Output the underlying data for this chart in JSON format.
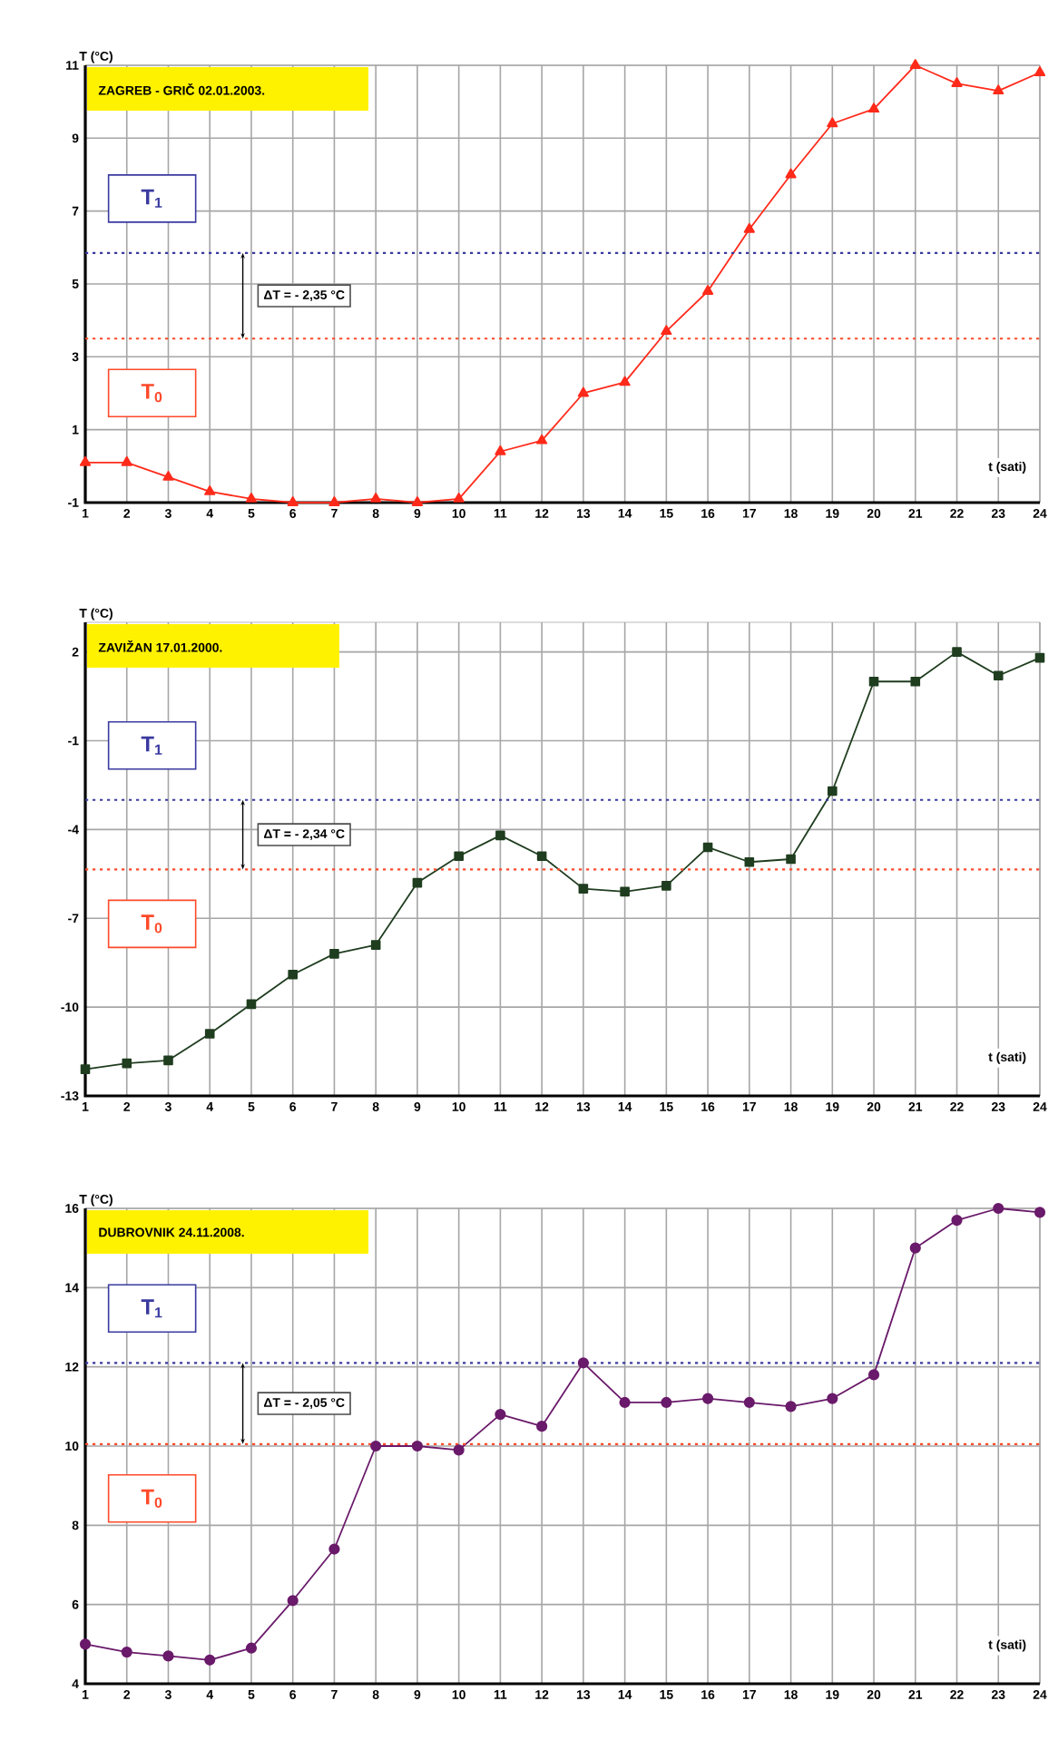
{
  "chart_data": [
    {
      "type": "line",
      "title": "ZAGREB - GRIČ 02.01.2003.",
      "ylabel": "T (°C)",
      "xlabel": "t (sati)",
      "grid": true,
      "marker": "triangle",
      "x": [
        1,
        2,
        3,
        4,
        5,
        6,
        7,
        8,
        9,
        10,
        11,
        12,
        13,
        14,
        15,
        16,
        17,
        18,
        19,
        20,
        21,
        22,
        23,
        24
      ],
      "xlim": [
        1,
        24
      ],
      "xticks": [
        1,
        2,
        3,
        4,
        5,
        6,
        7,
        8,
        9,
        10,
        11,
        12,
        13,
        14,
        15,
        16,
        17,
        18,
        19,
        20,
        21,
        22,
        23,
        24
      ],
      "ylim": [
        -1,
        11
      ],
      "yticks": [
        -1,
        1,
        3,
        5,
        7,
        9,
        11
      ],
      "series": [
        {
          "color": "#ff2a1a",
          "values": [
            0.1,
            0.1,
            -0.3,
            -0.7,
            -0.9,
            -1,
            -1,
            -0.9,
            -1,
            -0.9,
            0.4,
            0.7,
            2.0,
            2.3,
            3.7,
            4.8,
            6.5,
            8.0,
            9.4,
            9.8,
            11,
            10.5,
            10.3,
            10.8
          ]
        }
      ],
      "ref_lines": [
        {
          "axis": "y",
          "value": 5.85,
          "label": "T$_{1}$",
          "color": "#3a3aa0",
          "line_style": "dotted"
        },
        {
          "axis": "y",
          "value": 3.5,
          "label": "T$_{0}$",
          "color": "#ff4a2a",
          "line_style": "dotted"
        }
      ],
      "annotations": [
        "ΔT = - 2,35 °C"
      ]
    },
    {
      "type": "line",
      "title": "ZAVIŽAN 17.01.2000.",
      "ylabel": "T (°C)",
      "xlabel": "t (sati)",
      "grid": true,
      "marker": "square",
      "x": [
        1,
        2,
        3,
        4,
        5,
        6,
        7,
        8,
        9,
        10,
        11,
        12,
        13,
        14,
        15,
        16,
        17,
        18,
        19,
        20,
        21,
        22,
        23,
        24
      ],
      "xlim": [
        1,
        24
      ],
      "xticks": [
        1,
        2,
        3,
        4,
        5,
        6,
        7,
        8,
        9,
        10,
        11,
        12,
        13,
        14,
        15,
        16,
        17,
        18,
        19,
        20,
        21,
        22,
        23,
        24
      ],
      "ylim": [
        -13,
        3
      ],
      "yticks": [
        -13,
        -10,
        -7,
        -4,
        -1,
        2
      ],
      "series": [
        {
          "color": "#1f3d1f",
          "values": [
            -12.1,
            -11.9,
            -11.8,
            -10.9,
            -9.9,
            -8.9,
            -8.2,
            -7.9,
            -5.8,
            -4.9,
            -4.2,
            -4.9,
            -6.0,
            -6.1,
            -5.9,
            -4.6,
            -5.1,
            -5.0,
            -2.7,
            1.0,
            1.0,
            2.0,
            1.2,
            1.8
          ]
        }
      ],
      "ref_lines": [
        {
          "axis": "y",
          "value": -3.0,
          "label": "T$_{1}$",
          "color": "#3a3aa0",
          "line_style": "dotted"
        },
        {
          "axis": "y",
          "value": -5.35,
          "label": "T$_{0}$",
          "color": "#ff4a2a",
          "line_style": "dotted"
        }
      ],
      "annotations": [
        "ΔT = - 2,34 °C"
      ]
    },
    {
      "type": "line",
      "title": "DUBROVNIK 24.11.2008.",
      "ylabel": "T (°C)",
      "xlabel": "t (sati)",
      "grid": true,
      "marker": "circle",
      "x": [
        1,
        2,
        3,
        4,
        5,
        6,
        7,
        8,
        9,
        10,
        11,
        12,
        13,
        14,
        15,
        16,
        17,
        18,
        19,
        20,
        21,
        22,
        23,
        24
      ],
      "xlim": [
        1,
        24
      ],
      "xticks": [
        1,
        2,
        3,
        4,
        5,
        6,
        7,
        8,
        9,
        10,
        11,
        12,
        13,
        14,
        15,
        16,
        17,
        18,
        19,
        20,
        21,
        22,
        23,
        24
      ],
      "ylim": [
        4,
        16
      ],
      "yticks": [
        4,
        6,
        8,
        10,
        12,
        14,
        16
      ],
      "series": [
        {
          "color": "#6a1a6a",
          "values": [
            5.0,
            4.8,
            4.7,
            4.6,
            4.9,
            6.1,
            7.4,
            10.0,
            10.0,
            9.9,
            10.8,
            10.5,
            12.1,
            11.1,
            11.1,
            11.2,
            11.1,
            11.0,
            11.2,
            11.8,
            15.0,
            15.7,
            16.0,
            15.9
          ]
        }
      ],
      "ref_lines": [
        {
          "axis": "y",
          "value": 12.1,
          "label": "T$_{1}$",
          "color": "#3a3aa0",
          "line_style": "dotted"
        },
        {
          "axis": "y",
          "value": 10.05,
          "label": "T$_{0}$",
          "color": "#ff4a2a",
          "line_style": "dotted"
        }
      ],
      "annotations": [
        "ΔT = - 2,05 °C"
      ]
    }
  ]
}
